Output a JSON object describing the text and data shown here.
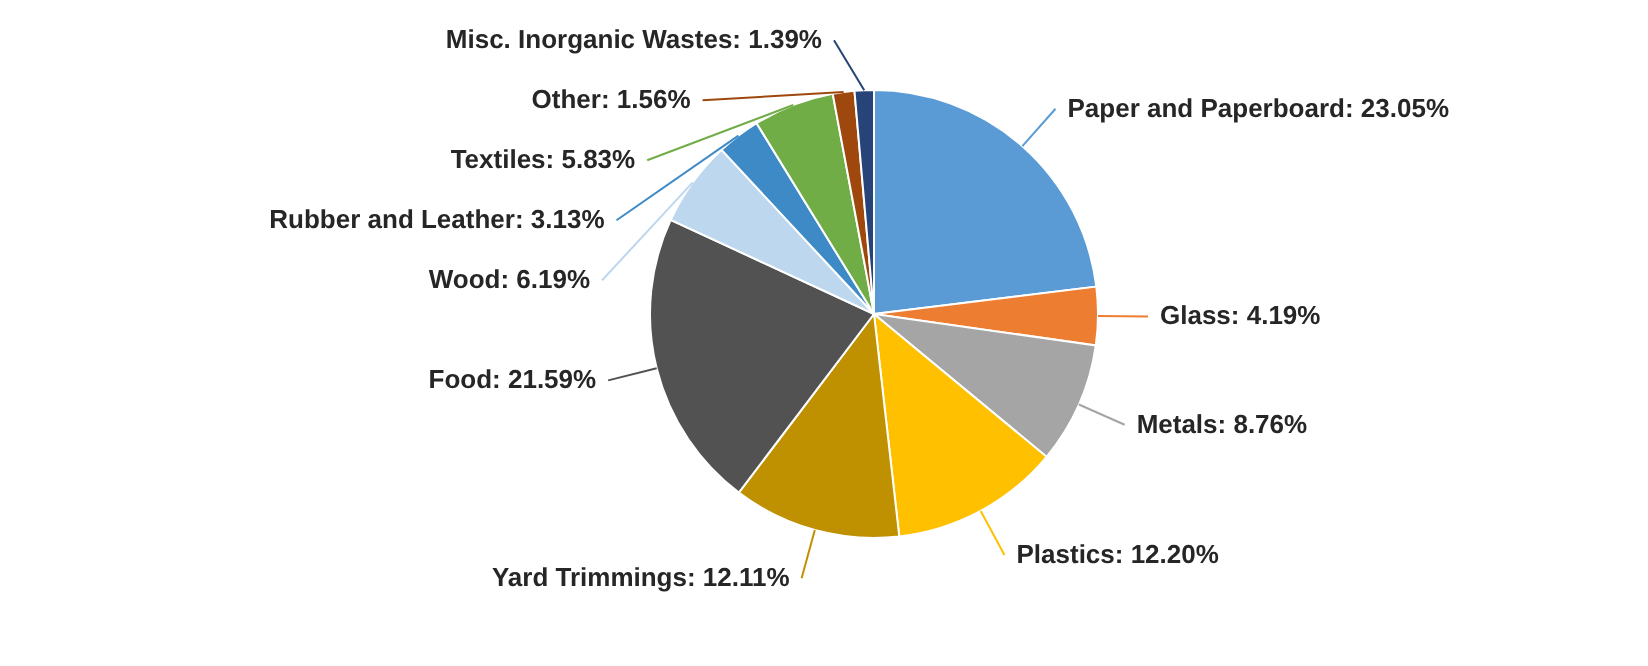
{
  "chart_data": {
    "type": "pie",
    "categories": [
      "Paper and Paperboard",
      "Glass",
      "Metals",
      "Plastics",
      "Yard Trimmings",
      "Food",
      "Wood",
      "Rubber and Leather",
      "Textiles",
      "Other",
      "Misc. Inorganic Wastes"
    ],
    "values": [
      23.05,
      4.19,
      8.76,
      12.2,
      12.11,
      21.59,
      6.19,
      3.13,
      5.83,
      1.56,
      1.39
    ],
    "value_labels": [
      "23.05%",
      "4.19%",
      "8.76%",
      "12.20%",
      "12.11%",
      "21.59%",
      "6.19%",
      "3.13%",
      "5.83%",
      "1.56%",
      "1.39%"
    ],
    "colors": [
      "#5b9bd5",
      "#ed7d31",
      "#a5a5a5",
      "#ffc000",
      "#bf9000",
      "#525252",
      "#bdd7ee",
      "#3d8ac7",
      "#70ad47",
      "#9e480e",
      "#264478"
    ]
  }
}
